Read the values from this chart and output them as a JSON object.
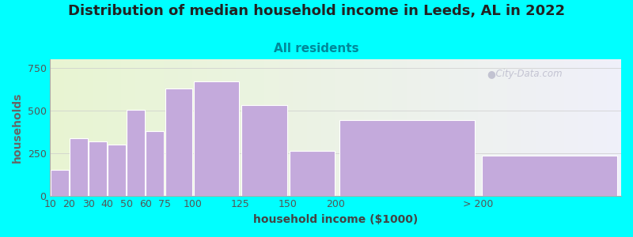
{
  "title": "Distribution of median household income in Leeds, AL in 2022",
  "subtitle": "All residents",
  "xlabel": "household income ($1000)",
  "ylabel": "households",
  "background_outer": "#00FFFF",
  "bar_color": "#C4AADC",
  "bar_edge_color": "#FFFFFF",
  "categories": [
    "10",
    "20",
    "30",
    "40",
    "50",
    "60",
    "75",
    "100",
    "125",
    "150",
    "200",
    "> 200"
  ],
  "values": [
    150,
    335,
    320,
    300,
    505,
    380,
    630,
    670,
    530,
    260,
    445,
    235
  ],
  "left_edges": [
    0,
    10,
    20,
    30,
    40,
    50,
    60,
    75,
    100,
    125,
    150,
    225
  ],
  "widths": [
    10,
    10,
    10,
    10,
    10,
    10,
    15,
    25,
    25,
    25,
    75,
    75
  ],
  "ylim": [
    0,
    800
  ],
  "yticks": [
    0,
    250,
    500,
    750
  ],
  "title_fontsize": 13,
  "subtitle_fontsize": 11,
  "axis_label_fontsize": 10,
  "tick_fontsize": 9,
  "watermark_text": "City-Data.com",
  "plot_bg_left": "#E8F5D0",
  "plot_bg_right": "#F2F2F8",
  "title_color": "#222222",
  "subtitle_color": "#008899",
  "ylabel_color": "#666666",
  "xlabel_color": "#444444",
  "tick_color": "#555555",
  "grid_color": "#CCCCCC",
  "watermark_color": "#BBBBCC"
}
